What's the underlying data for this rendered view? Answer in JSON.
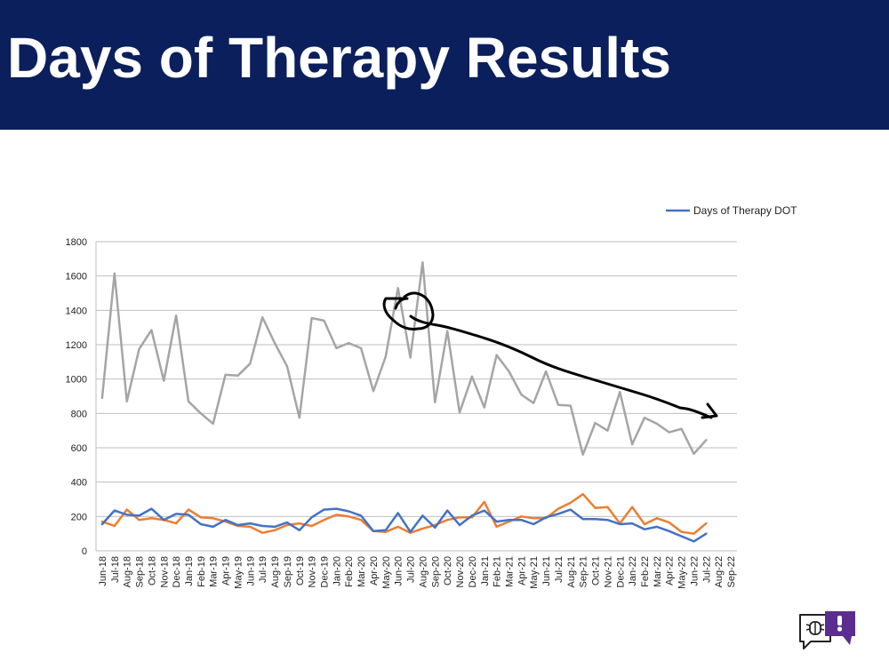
{
  "slide": {
    "title": "Days of Therapy Results"
  },
  "colors": {
    "title_bar": "#0b1f5c",
    "title_text": "#ffffff",
    "series_blue": "#4472c4",
    "series_orange": "#ed7d31",
    "series_gray": "#a5a5a5",
    "annotation": "#000000",
    "logo_purple": "#5b2d8e"
  },
  "chart_data": {
    "type": "line",
    "title": "",
    "xlabel": "",
    "ylabel": "",
    "ylim": [
      0,
      1800
    ],
    "yticks": [
      0,
      200,
      400,
      600,
      800,
      1000,
      1200,
      1400,
      1600,
      1800
    ],
    "grid": "horizontal",
    "legend": {
      "placement": "top-right",
      "label": "Days of Therapy  DOT"
    },
    "categories": [
      "Jun-18",
      "Jul-18",
      "Aug-18",
      "Sep-18",
      "Oct-18",
      "Nov-18",
      "Dec-18",
      "Jan-19",
      "Feb-19",
      "Mar-19",
      "Apr-19",
      "May-19",
      "Jun-19",
      "Jul-19",
      "Aug-19",
      "Sep-19",
      "Oct-19",
      "Nov-19",
      "Dec-19",
      "Jan-20",
      "Feb-20",
      "Mar-20",
      "Apr-20",
      "May-20",
      "Jun-20",
      "Jul-20",
      "Aug-20",
      "Sep-20",
      "Oct-20",
      "Nov-20",
      "Dec-20",
      "Jan-21",
      "Feb-21",
      "Mar-21",
      "Apr-21",
      "May-21",
      "Jun-21",
      "Jul-21",
      "Aug-21",
      "Sep-21",
      "Oct-21",
      "Nov-21",
      "Dec-21",
      "Jan-22",
      "Feb-22",
      "Mar-22",
      "Apr-22",
      "May-22",
      "Jun-22",
      "Jul-22",
      "Aug-22",
      "Sep-22"
    ],
    "series": [
      {
        "key": "gray",
        "color": "#a5a5a5",
        "values": [
          890,
          1615,
          870,
          1175,
          1285,
          990,
          1370,
          870,
          800,
          740,
          1025,
          1020,
          1090,
          1360,
          1210,
          1075,
          775,
          1355,
          1340,
          1180,
          1210,
          1180,
          930,
          1130,
          1530,
          1125,
          1680,
          865,
          1280,
          805,
          1015,
          835,
          1140,
          1045,
          910,
          860,
          1045,
          850,
          845,
          560,
          745,
          700,
          925,
          620,
          775,
          740,
          690,
          710,
          565,
          645,
          null,
          null
        ]
      },
      {
        "key": "orange",
        "color": "#ed7d31",
        "values": [
          170,
          145,
          240,
          180,
          190,
          180,
          160,
          240,
          195,
          190,
          170,
          145,
          140,
          105,
          120,
          150,
          160,
          145,
          180,
          210,
          200,
          180,
          115,
          110,
          140,
          105,
          130,
          150,
          180,
          195,
          195,
          285,
          140,
          170,
          200,
          190,
          190,
          245,
          280,
          330,
          250,
          255,
          160,
          255,
          155,
          190,
          165,
          110,
          100,
          160,
          null,
          null
        ]
      },
      {
        "key": "blue",
        "color": "#4472c4",
        "label": "Days of Therapy  DOT",
        "values": [
          155,
          235,
          210,
          205,
          245,
          180,
          215,
          210,
          155,
          140,
          180,
          150,
          160,
          145,
          140,
          165,
          120,
          195,
          240,
          245,
          230,
          205,
          115,
          120,
          220,
          110,
          205,
          135,
          235,
          150,
          205,
          235,
          170,
          180,
          180,
          155,
          195,
          215,
          240,
          185,
          185,
          180,
          155,
          160,
          125,
          140,
          115,
          85,
          55,
          100,
          null,
          null
        ]
      }
    ]
  }
}
